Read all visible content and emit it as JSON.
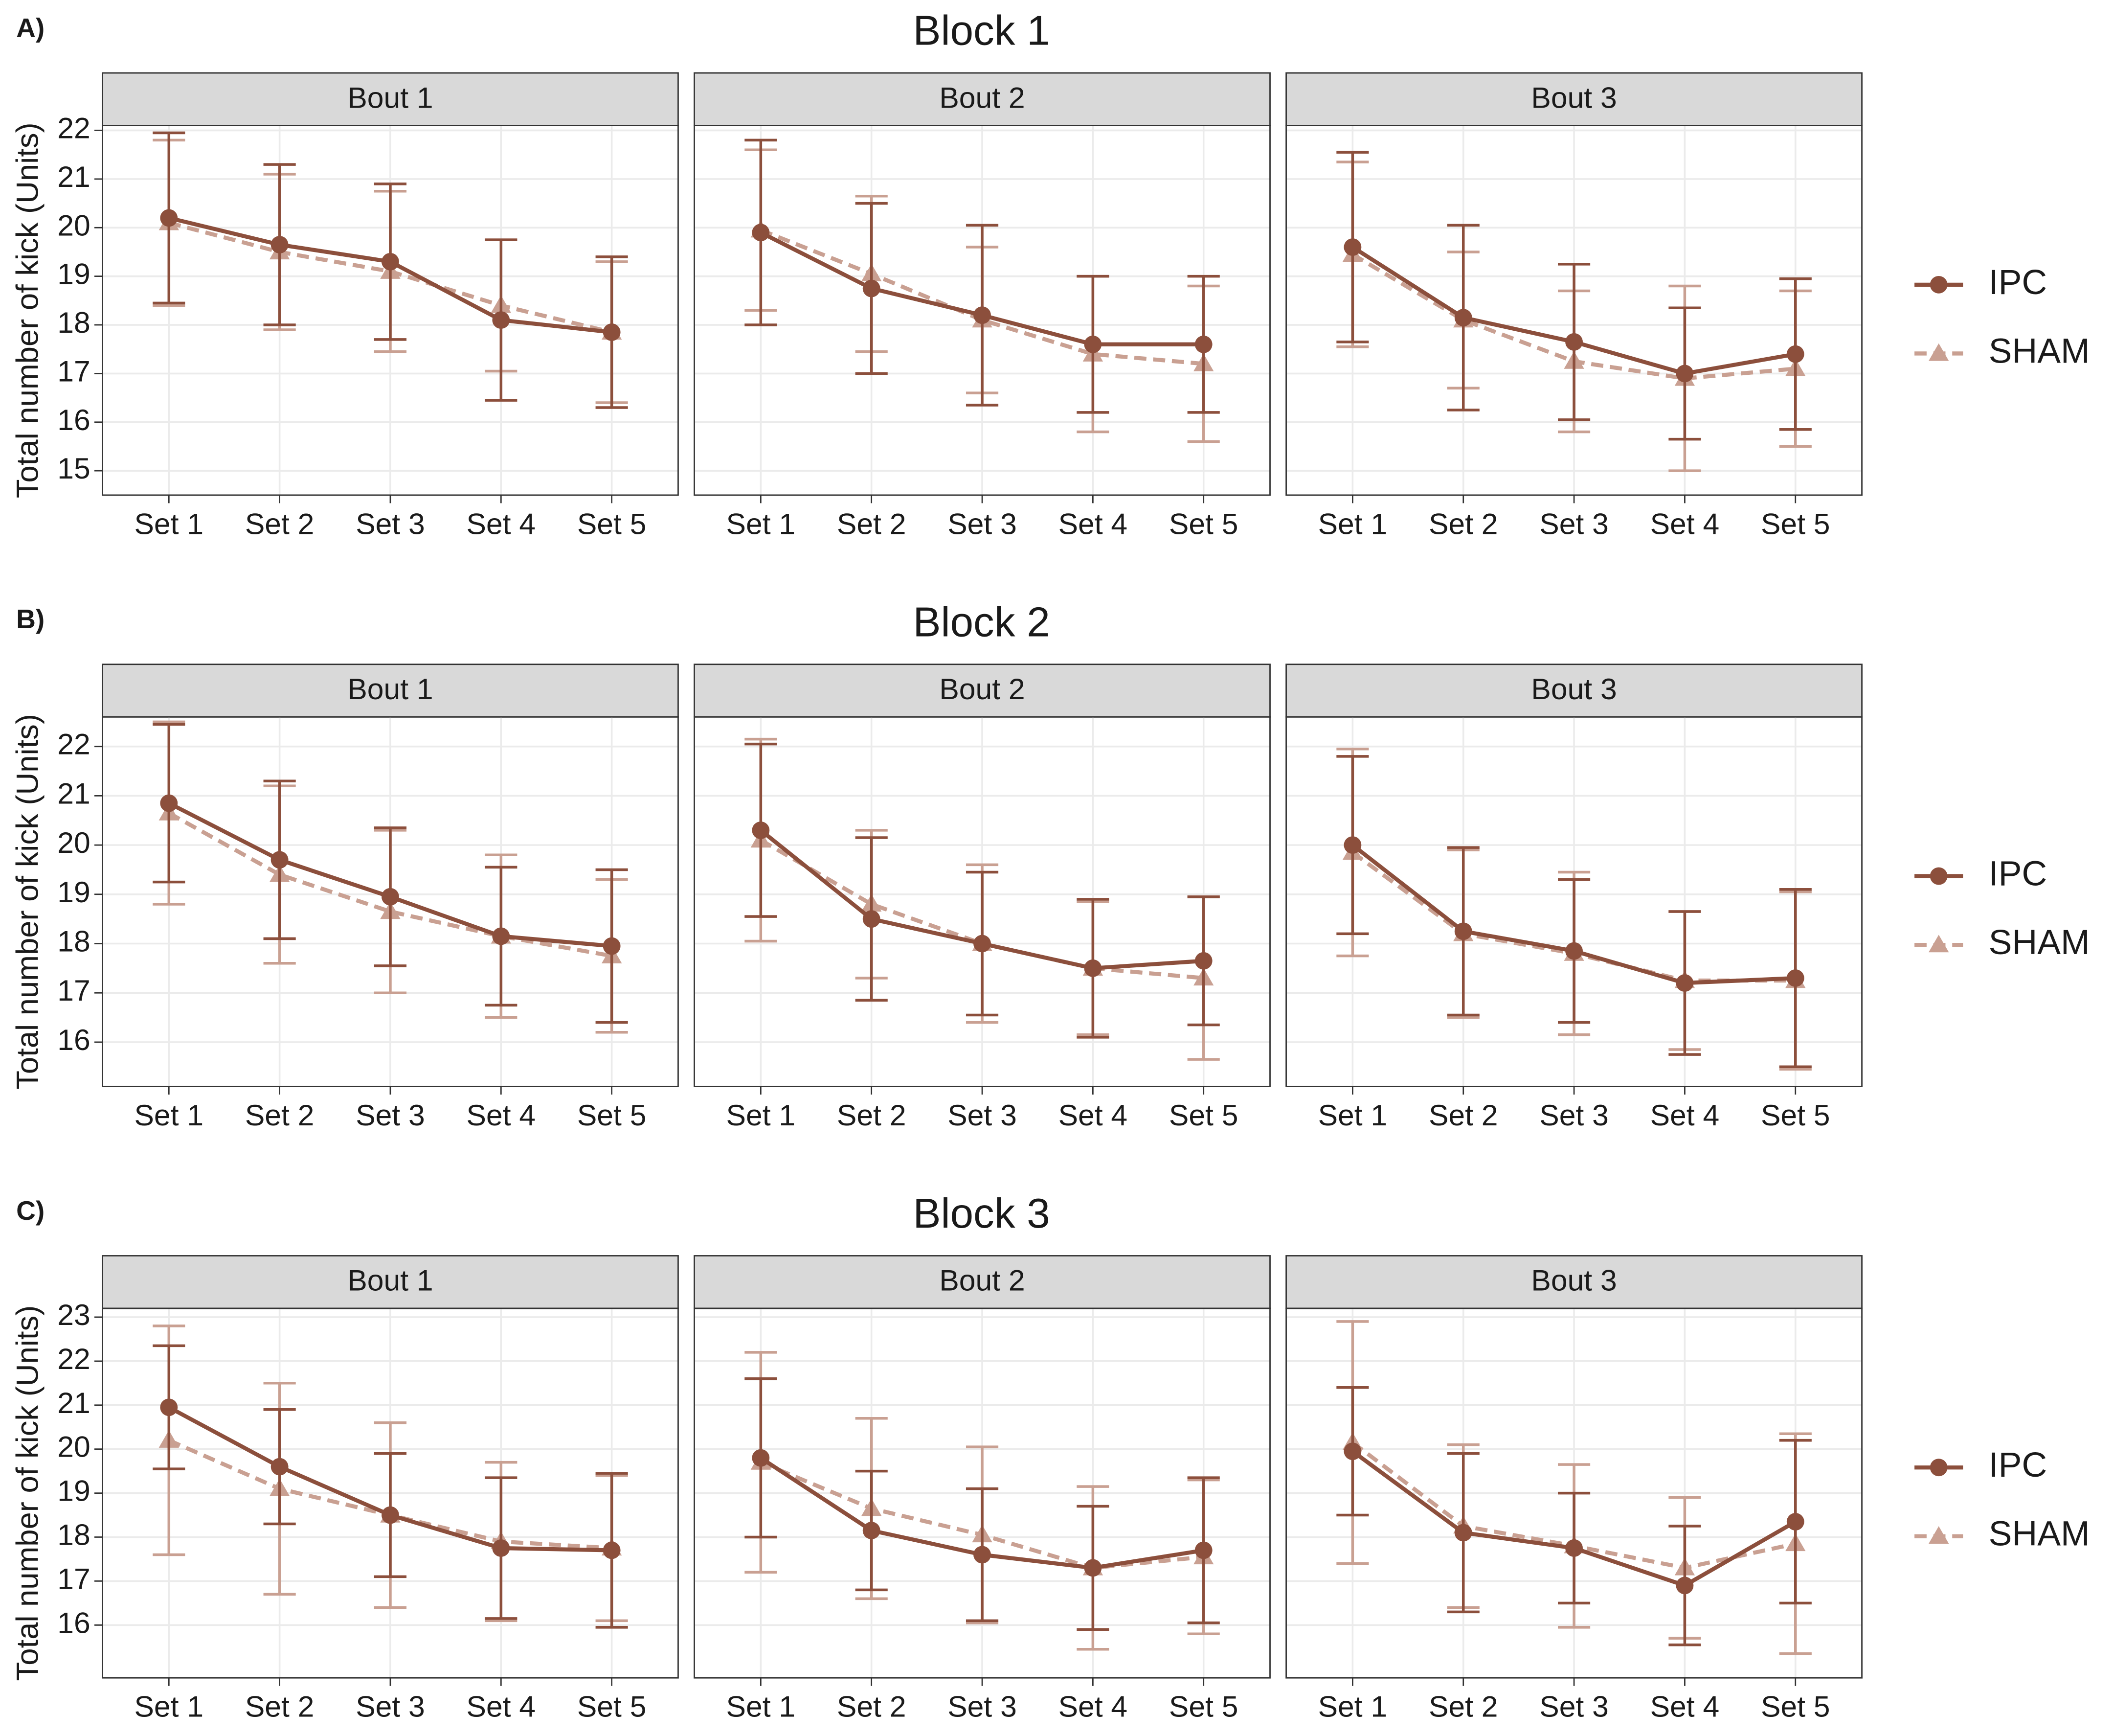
{
  "chart_data": [
    {
      "type": "line",
      "label": "A)",
      "title": "Block 1",
      "y_label": "Total number of kick (Units)",
      "categories": [
        "Set 1",
        "Set 2",
        "Set 3",
        "Set 4",
        "Set 5"
      ],
      "ylim": [
        14.5,
        22.1
      ],
      "yticks": [
        15,
        16,
        17,
        18,
        19,
        20,
        21,
        22
      ],
      "grid": true,
      "series": [
        {
          "name": "IPC",
          "color": "#8c4f3c",
          "marker": "circle",
          "linestyle": "solid"
        },
        {
          "name": "SHAM",
          "color": "#c9a092",
          "marker": "triangle",
          "linestyle": "dashed"
        }
      ],
      "panels": [
        {
          "title": "Bout 1",
          "values": [
            [
              20.2,
              19.65,
              19.3,
              18.1,
              17.85
            ],
            [
              20.1,
              19.5,
              19.1,
              18.4,
              17.85
            ]
          ],
          "errors": [
            [
              1.75,
              1.65,
              1.6,
              1.65,
              1.55
            ],
            [
              1.7,
              1.6,
              1.65,
              1.35,
              1.45
            ]
          ]
        },
        {
          "title": "Bout 2",
          "values": [
            [
              19.9,
              18.75,
              18.2,
              17.6,
              17.6
            ],
            [
              19.95,
              19.05,
              18.1,
              17.4,
              17.2
            ]
          ],
          "errors": [
            [
              1.9,
              1.75,
              1.85,
              1.4,
              1.4
            ],
            [
              1.65,
              1.6,
              1.5,
              1.6,
              1.6
            ]
          ]
        },
        {
          "title": "Bout 3",
          "values": [
            [
              19.6,
              18.15,
              17.65,
              17.0,
              17.4
            ],
            [
              19.45,
              18.1,
              17.25,
              16.9,
              17.1
            ]
          ],
          "errors": [
            [
              1.95,
              1.9,
              1.6,
              1.35,
              1.55
            ],
            [
              1.9,
              1.4,
              1.45,
              1.9,
              1.6
            ]
          ]
        }
      ]
    },
    {
      "type": "line",
      "label": "B)",
      "title": "Block 2",
      "y_label": "Total number of kick (Units)",
      "categories": [
        "Set 1",
        "Set 2",
        "Set 3",
        "Set 4",
        "Set 5"
      ],
      "ylim": [
        15.1,
        22.6
      ],
      "yticks": [
        16,
        17,
        18,
        19,
        20,
        21,
        22
      ],
      "grid": true,
      "series": [
        {
          "name": "IPC",
          "color": "#8c4f3c",
          "marker": "circle",
          "linestyle": "solid"
        },
        {
          "name": "SHAM",
          "color": "#c9a092",
          "marker": "triangle",
          "linestyle": "dashed"
        }
      ],
      "panels": [
        {
          "title": "Bout 1",
          "values": [
            [
              20.85,
              19.7,
              18.95,
              18.15,
              17.95
            ],
            [
              20.65,
              19.4,
              18.65,
              18.15,
              17.75
            ]
          ],
          "errors": [
            [
              1.6,
              1.6,
              1.4,
              1.4,
              1.55
            ],
            [
              1.85,
              1.8,
              1.65,
              1.65,
              1.55
            ]
          ]
        },
        {
          "title": "Bout 2",
          "values": [
            [
              20.3,
              18.5,
              18.0,
              17.5,
              17.65
            ],
            [
              20.1,
              18.8,
              18.0,
              17.5,
              17.3
            ]
          ],
          "errors": [
            [
              1.75,
              1.65,
              1.45,
              1.4,
              1.3
            ],
            [
              2.05,
              1.5,
              1.6,
              1.35,
              1.65
            ]
          ]
        },
        {
          "title": "Bout 3",
          "values": [
            [
              20.0,
              18.25,
              17.85,
              17.2,
              17.3
            ],
            [
              19.85,
              18.2,
              17.8,
              17.25,
              17.25
            ]
          ],
          "errors": [
            [
              1.8,
              1.7,
              1.45,
              1.45,
              1.8
            ],
            [
              2.1,
              1.7,
              1.65,
              1.4,
              1.8
            ]
          ]
        }
      ]
    },
    {
      "type": "line",
      "label": "C)",
      "title": "Block 3",
      "y_label": "Total number of kick (Units)",
      "categories": [
        "Set 1",
        "Set 2",
        "Set 3",
        "Set 4",
        "Set 5"
      ],
      "ylim": [
        14.8,
        23.2
      ],
      "yticks": [
        16,
        17,
        18,
        19,
        20,
        21,
        22,
        23
      ],
      "grid": true,
      "series": [
        {
          "name": "IPC",
          "color": "#8c4f3c",
          "marker": "circle",
          "linestyle": "solid"
        },
        {
          "name": "SHAM",
          "color": "#c9a092",
          "marker": "triangle",
          "linestyle": "dashed"
        }
      ],
      "panels": [
        {
          "title": "Bout 1",
          "values": [
            [
              20.95,
              19.6,
              18.5,
              17.75,
              17.7
            ],
            [
              20.2,
              19.1,
              18.5,
              17.9,
              17.75
            ]
          ],
          "errors": [
            [
              1.4,
              1.3,
              1.4,
              1.6,
              1.75
            ],
            [
              2.6,
              2.4,
              2.1,
              1.8,
              1.65
            ]
          ]
        },
        {
          "title": "Bout 2",
          "values": [
            [
              19.8,
              18.15,
              17.6,
              17.3,
              17.7
            ],
            [
              19.7,
              18.65,
              18.05,
              17.3,
              17.55
            ]
          ],
          "errors": [
            [
              1.8,
              1.35,
              1.5,
              1.4,
              1.65
            ],
            [
              2.5,
              2.05,
              2.0,
              1.85,
              1.75
            ]
          ]
        },
        {
          "title": "Bout 3",
          "values": [
            [
              19.95,
              18.1,
              17.75,
              16.9,
              18.35
            ],
            [
              20.15,
              18.25,
              17.8,
              17.3,
              17.85
            ]
          ],
          "errors": [
            [
              1.45,
              1.8,
              1.25,
              1.35,
              1.85
            ],
            [
              2.75,
              1.85,
              1.85,
              1.6,
              2.5
            ]
          ]
        }
      ]
    }
  ]
}
